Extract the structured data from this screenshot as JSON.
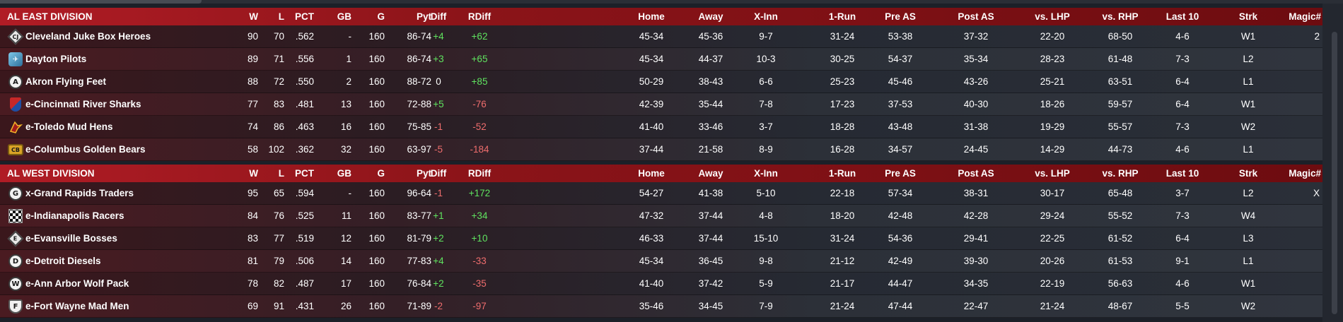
{
  "columns": [
    "W",
    "L",
    "PCT",
    "GB",
    "G",
    "Pyt",
    "Diff",
    "RDiff",
    "Home",
    "Away",
    "X-Inn",
    "1-Run",
    "Pre AS",
    "Post AS",
    "vs. LHP",
    "vs. RHP",
    "Last 10",
    "Strk",
    "Magic#"
  ],
  "divisions": [
    {
      "name": "AL EAST DIVISION",
      "teams": [
        {
          "name": "Cleveland Juke Box Heroes",
          "logo": "cleveland-logo-icon",
          "cells": [
            "90",
            "70",
            ".562",
            "-",
            "160",
            "86-74",
            "+4",
            "+62",
            "45-34",
            "45-36",
            "9-7",
            "31-24",
            "53-38",
            "37-32",
            "22-20",
            "68-50",
            "4-6",
            "W1",
            "2"
          ]
        },
        {
          "name": "Dayton Pilots",
          "logo": "dayton-logo-icon",
          "cells": [
            "89",
            "71",
            ".556",
            "1",
            "160",
            "86-74",
            "+3",
            "+65",
            "45-34",
            "44-37",
            "10-3",
            "30-25",
            "54-37",
            "35-34",
            "28-23",
            "61-48",
            "7-3",
            "L2",
            ""
          ]
        },
        {
          "name": "Akron  Flying Feet",
          "logo": "akron-logo-icon",
          "cells": [
            "88",
            "72",
            ".550",
            "2",
            "160",
            "88-72",
            "0",
            "+85",
            "50-29",
            "38-43",
            "6-6",
            "25-23",
            "45-46",
            "43-26",
            "25-21",
            "63-51",
            "6-4",
            "L1",
            ""
          ]
        },
        {
          "name": "e-Cincinnati River Sharks",
          "logo": "cincinnati-logo-icon",
          "cells": [
            "77",
            "83",
            ".481",
            "13",
            "160",
            "72-88",
            "+5",
            "-76",
            "42-39",
            "35-44",
            "7-8",
            "17-23",
            "37-53",
            "40-30",
            "18-26",
            "59-57",
            "6-4",
            "W1",
            ""
          ]
        },
        {
          "name": "e-Toledo  Mud Hens",
          "logo": "toledo-logo-icon",
          "cells": [
            "74",
            "86",
            ".463",
            "16",
            "160",
            "75-85",
            "-1",
            "-52",
            "41-40",
            "33-46",
            "3-7",
            "18-28",
            "43-48",
            "31-38",
            "19-29",
            "55-57",
            "7-3",
            "W2",
            ""
          ]
        },
        {
          "name": "e-Columbus Golden Bears",
          "logo": "columbus-logo-icon",
          "cells": [
            "58",
            "102",
            ".362",
            "32",
            "160",
            "63-97",
            "-5",
            "-184",
            "37-44",
            "21-58",
            "8-9",
            "16-28",
            "34-57",
            "24-45",
            "14-29",
            "44-73",
            "4-6",
            "L1",
            ""
          ]
        }
      ]
    },
    {
      "name": "AL WEST DIVISION",
      "teams": [
        {
          "name": "x-Grand Rapids Traders",
          "logo": "grand-rapids-logo-icon",
          "cells": [
            "95",
            "65",
            ".594",
            "-",
            "160",
            "96-64",
            "-1",
            "+172",
            "54-27",
            "41-38",
            "5-10",
            "22-18",
            "57-34",
            "38-31",
            "30-17",
            "65-48",
            "3-7",
            "L2",
            "X"
          ]
        },
        {
          "name": "e-Indianapolis Racers",
          "logo": "indianapolis-logo-icon",
          "cells": [
            "84",
            "76",
            ".525",
            "11",
            "160",
            "83-77",
            "+1",
            "+34",
            "47-32",
            "37-44",
            "4-8",
            "18-20",
            "42-48",
            "42-28",
            "29-24",
            "55-52",
            "7-3",
            "W4",
            ""
          ]
        },
        {
          "name": "e-Evansville Bosses",
          "logo": "evansville-logo-icon",
          "cells": [
            "83",
            "77",
            ".519",
            "12",
            "160",
            "81-79",
            "+2",
            "+10",
            "46-33",
            "37-44",
            "15-10",
            "31-24",
            "54-36",
            "29-41",
            "22-25",
            "61-52",
            "6-4",
            "L3",
            ""
          ]
        },
        {
          "name": "e-Detroit Diesels",
          "logo": "detroit-logo-icon",
          "cells": [
            "81",
            "79",
            ".506",
            "14",
            "160",
            "77-83",
            "+4",
            "-33",
            "45-34",
            "36-45",
            "9-8",
            "21-12",
            "42-49",
            "39-30",
            "20-26",
            "61-53",
            "9-1",
            "L1",
            ""
          ]
        },
        {
          "name": "e-Ann Arbor Wolf Pack",
          "logo": "ann-arbor-logo-icon",
          "cells": [
            "78",
            "82",
            ".487",
            "17",
            "160",
            "76-84",
            "+2",
            "-35",
            "41-40",
            "37-42",
            "5-9",
            "21-17",
            "44-47",
            "34-35",
            "22-19",
            "56-63",
            "4-6",
            "W1",
            ""
          ]
        },
        {
          "name": "e-Fort Wayne Mad Men",
          "logo": "fort-wayne-logo-icon",
          "cells": [
            "69",
            "91",
            ".431",
            "26",
            "160",
            "71-89",
            "-2",
            "-97",
            "35-46",
            "34-45",
            "7-9",
            "21-24",
            "47-44",
            "22-47",
            "21-24",
            "48-67",
            "5-5",
            "W2",
            ""
          ]
        }
      ]
    }
  ],
  "logo_glyphs": {
    "cleveland-logo-icon": "CJ",
    "dayton-logo-icon": "✈",
    "akron-logo-icon": "A",
    "cincinnati-logo-icon": "",
    "toledo-logo-icon": "",
    "columbus-logo-icon": "CB",
    "grand-rapids-logo-icon": "G",
    "indianapolis-logo-icon": "",
    "evansville-logo-icon": "E",
    "detroit-logo-icon": "D",
    "ann-arbor-logo-icon": "W",
    "fort-wayne-logo-icon": "F"
  },
  "colors": {
    "positive": "#5fe35f",
    "negative": "#ee6d6d",
    "header_red": "#b01c25"
  }
}
